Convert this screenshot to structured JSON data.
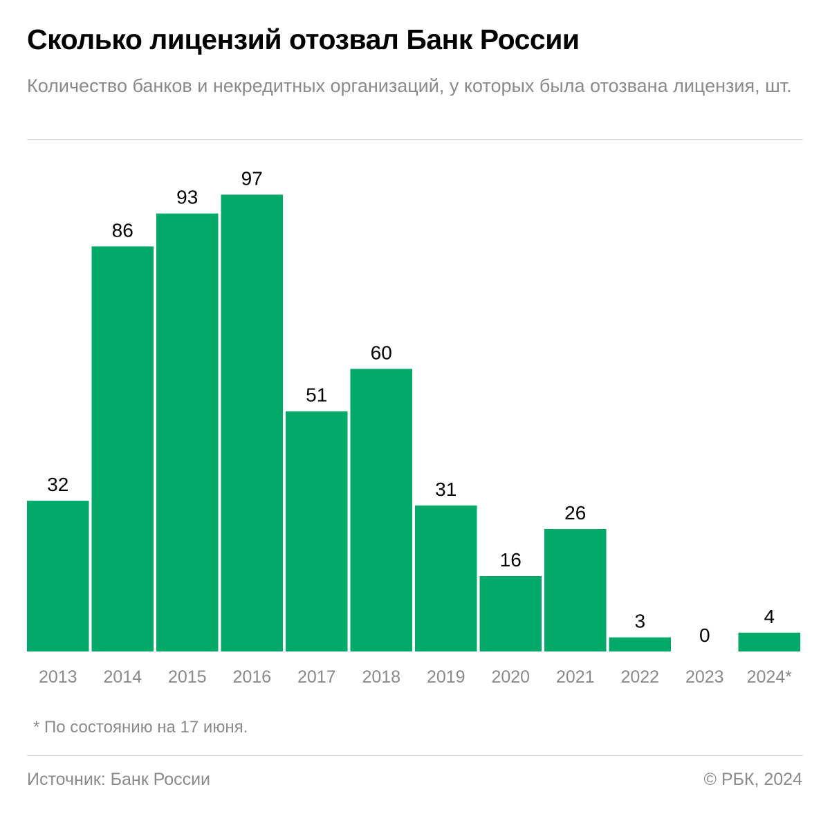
{
  "chart_data": {
    "type": "bar",
    "title": "Сколько лицензий отозвал Банк России",
    "subtitle": "Количество банков и некредитных организаций, у которых была отозвана лицензия, шт.",
    "categories": [
      "2013",
      "2014",
      "2015",
      "2016",
      "2017",
      "2018",
      "2019",
      "2020",
      "2021",
      "2022",
      "2023",
      "2024*"
    ],
    "values": [
      32,
      86,
      93,
      97,
      51,
      60,
      31,
      16,
      26,
      3,
      0,
      4
    ],
    "color": "#02a968",
    "ylim": [
      0,
      100
    ],
    "footnote": "* По состоянию на 17 июня.",
    "source": "Источник: Банк России",
    "copyright": "© РБК, 2024"
  }
}
